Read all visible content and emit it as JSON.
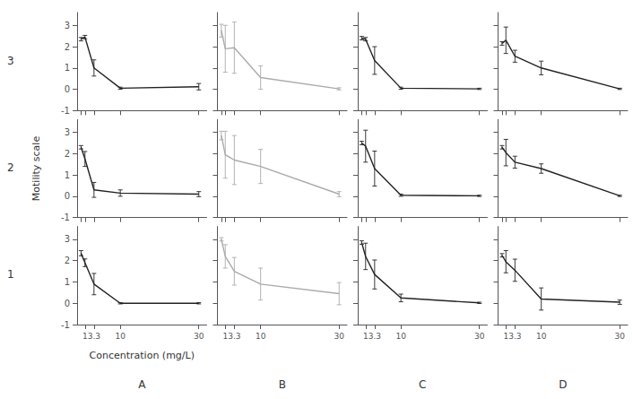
{
  "chart_data": {
    "type": "line",
    "xlabel": "Concentration (mg/L)",
    "ylabel": "Motility scale",
    "row_labels": [
      "3",
      "2",
      "1"
    ],
    "col_labels": [
      "A",
      "B",
      "C",
      "D"
    ],
    "x": [
      0,
      1,
      3.3,
      10,
      30
    ],
    "xlim": [
      -1,
      32
    ],
    "xticks": [
      0,
      1,
      3.3,
      10,
      30
    ],
    "ylim": [
      -1,
      3.6
    ],
    "yticks": [
      -1,
      0,
      1,
      2,
      3
    ],
    "grid": false,
    "panels": [
      {
        "row": "3",
        "column": "A",
        "color": "#222222",
        "values": [
          2.35,
          2.45,
          1.0,
          0.05,
          0.12
        ],
        "errors": [
          0.08,
          0.08,
          0.38,
          0.05,
          0.15
        ]
      },
      {
        "row": "3",
        "column": "B",
        "color": "#aaaaaa",
        "values": [
          2.75,
          1.9,
          1.95,
          0.55,
          0.02
        ],
        "errors": [
          0.3,
          1.1,
          1.2,
          0.55,
          0.05
        ]
      },
      {
        "row": "3",
        "column": "C",
        "color": "#222222",
        "values": [
          2.4,
          2.35,
          1.35,
          0.05,
          0.02
        ],
        "errors": [
          0.08,
          0.08,
          0.65,
          0.05,
          0.03
        ]
      },
      {
        "row": "3",
        "column": "D",
        "color": "#222222",
        "values": [
          2.15,
          2.3,
          1.55,
          1.0,
          0.02
        ],
        "errors": [
          0.08,
          0.62,
          0.28,
          0.32,
          0.03
        ]
      },
      {
        "row": "2",
        "column": "A",
        "color": "#222222",
        "values": [
          2.3,
          1.75,
          0.3,
          0.15,
          0.1
        ],
        "errors": [
          0.08,
          0.35,
          0.35,
          0.15,
          0.12
        ]
      },
      {
        "row": "2",
        "column": "B",
        "color": "#aaaaaa",
        "values": [
          2.85,
          1.95,
          1.7,
          1.4,
          0.1
        ],
        "errors": [
          0.2,
          1.1,
          1.15,
          0.8,
          0.12
        ]
      },
      {
        "row": "2",
        "column": "C",
        "color": "#222222",
        "values": [
          2.5,
          2.35,
          1.3,
          0.05,
          0.02
        ],
        "errors": [
          0.08,
          0.75,
          0.82,
          0.05,
          0.03
        ]
      },
      {
        "row": "2",
        "column": "D",
        "color": "#222222",
        "values": [
          2.3,
          2.05,
          1.6,
          1.3,
          0.02
        ],
        "errors": [
          0.08,
          0.62,
          0.28,
          0.22,
          0.03
        ]
      },
      {
        "row": "1",
        "column": "A",
        "color": "#222222",
        "values": [
          2.35,
          1.9,
          0.9,
          0.0,
          0.0
        ],
        "errors": [
          0.12,
          0.18,
          0.5,
          0.03,
          0.03
        ]
      },
      {
        "row": "1",
        "column": "B",
        "color": "#aaaaaa",
        "values": [
          3.0,
          2.2,
          1.5,
          0.9,
          0.45
        ],
        "errors": [
          0.08,
          0.55,
          0.65,
          0.75,
          0.52
        ]
      },
      {
        "row": "1",
        "column": "C",
        "color": "#222222",
        "values": [
          2.85,
          2.2,
          1.35,
          0.25,
          0.02
        ],
        "errors": [
          0.08,
          0.62,
          0.68,
          0.18,
          0.03
        ]
      },
      {
        "row": "1",
        "column": "D",
        "color": "#222222",
        "values": [
          2.25,
          1.95,
          1.55,
          0.2,
          0.05
        ],
        "errors": [
          0.08,
          0.52,
          0.52,
          0.52,
          0.1
        ]
      }
    ]
  }
}
